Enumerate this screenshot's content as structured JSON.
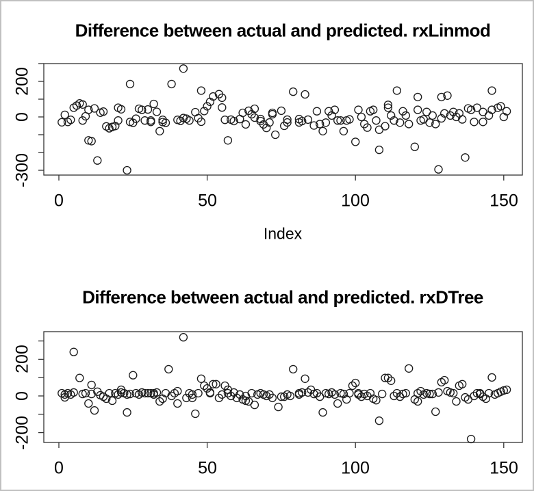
{
  "style": {
    "background": "#ffffff",
    "frame_border_color": "#c0c0c0",
    "axis_color": "#333333",
    "point_color": "#1c1c1c",
    "text_color": "#000000"
  },
  "chart_data": [
    {
      "type": "scatter",
      "title": "Difference between actual and predicted. rxLinmod",
      "xlabel": "Index",
      "ylabel": "",
      "marker": "open-circle",
      "grid": false,
      "legend": "none",
      "xlim": [
        -5,
        156
      ],
      "ylim": [
        -327,
        300
      ],
      "x_ticks": [
        0,
        50,
        100,
        150
      ],
      "x_tick_labels": [
        "0",
        "50",
        "100",
        "150"
      ],
      "y_ticks": [
        300,
        200,
        100,
        0,
        -100,
        -200,
        -300
      ],
      "y_ticks_labeled": [
        200,
        0,
        -300
      ],
      "y_tick_labels_shown": [
        "200",
        "0",
        "-300"
      ],
      "points": [
        [
          1,
          -30
        ],
        [
          2,
          12
        ],
        [
          3,
          -28
        ],
        [
          4,
          -16
        ],
        [
          5,
          52
        ],
        [
          6,
          64
        ],
        [
          7,
          76
        ],
        [
          8,
          70
        ],
        [
          8,
          -20
        ],
        [
          9,
          4
        ],
        [
          10,
          40
        ],
        [
          10,
          -132
        ],
        [
          11,
          -136
        ],
        [
          12,
          48
        ],
        [
          13,
          -245
        ],
        [
          14,
          24
        ],
        [
          15,
          30
        ],
        [
          16,
          -53
        ],
        [
          17,
          -64
        ],
        [
          18,
          -56
        ],
        [
          19,
          -51
        ],
        [
          20,
          -20
        ],
        [
          20,
          52
        ],
        [
          21,
          43
        ],
        [
          23,
          -300
        ],
        [
          24,
          -28
        ],
        [
          24,
          185
        ],
        [
          25,
          -33
        ],
        [
          26,
          -10
        ],
        [
          27,
          46
        ],
        [
          28,
          40
        ],
        [
          29,
          -20
        ],
        [
          30,
          42
        ],
        [
          31,
          -28
        ],
        [
          31,
          -20
        ],
        [
          32,
          73
        ],
        [
          33,
          29
        ],
        [
          34,
          -80
        ],
        [
          35,
          -16
        ],
        [
          35,
          -29
        ],
        [
          36,
          -33
        ],
        [
          38,
          185
        ],
        [
          40,
          -16
        ],
        [
          41,
          -22
        ],
        [
          42,
          272
        ],
        [
          42,
          -6
        ],
        [
          43,
          -10
        ],
        [
          44,
          -20
        ],
        [
          46,
          27
        ],
        [
          47,
          -7
        ],
        [
          48,
          -27
        ],
        [
          48,
          148
        ],
        [
          49,
          33
        ],
        [
          50,
          60
        ],
        [
          51,
          85
        ],
        [
          52,
          115
        ],
        [
          54,
          128
        ],
        [
          55,
          108
        ],
        [
          55,
          53
        ],
        [
          56,
          -16
        ],
        [
          57,
          -132
        ],
        [
          58,
          -15
        ],
        [
          59,
          -23
        ],
        [
          61,
          -12
        ],
        [
          62,
          23
        ],
        [
          63,
          -42
        ],
        [
          64,
          35
        ],
        [
          65,
          15
        ],
        [
          66,
          46
        ],
        [
          66,
          -4
        ],
        [
          68,
          -12
        ],
        [
          68,
          -23
        ],
        [
          69,
          -42
        ],
        [
          70,
          -62
        ],
        [
          71,
          -31
        ],
        [
          72,
          15
        ],
        [
          72,
          23
        ],
        [
          73,
          -100
        ],
        [
          75,
          35
        ],
        [
          76,
          -50
        ],
        [
          77,
          -15
        ],
        [
          77,
          -31
        ],
        [
          79,
          142
        ],
        [
          81,
          -31
        ],
        [
          81,
          -12
        ],
        [
          82,
          -23
        ],
        [
          83,
          127
        ],
        [
          84,
          -15
        ],
        [
          86,
          -48
        ],
        [
          87,
          32
        ],
        [
          88,
          -40
        ],
        [
          89,
          -80
        ],
        [
          90,
          -32
        ],
        [
          91,
          32
        ],
        [
          92,
          8
        ],
        [
          93,
          40
        ],
        [
          94,
          -20
        ],
        [
          95,
          -20
        ],
        [
          96,
          -80
        ],
        [
          97,
          -20
        ],
        [
          98,
          -14
        ],
        [
          100,
          -140
        ],
        [
          101,
          40
        ],
        [
          102,
          0
        ],
        [
          103,
          -40
        ],
        [
          104,
          -60
        ],
        [
          105,
          32
        ],
        [
          106,
          40
        ],
        [
          107,
          -20
        ],
        [
          108,
          -185
        ],
        [
          108,
          -72
        ],
        [
          110,
          -52
        ],
        [
          111,
          68
        ],
        [
          111,
          52
        ],
        [
          112,
          8
        ],
        [
          113,
          -20
        ],
        [
          114,
          148
        ],
        [
          115,
          -32
        ],
        [
          116,
          32
        ],
        [
          117,
          8
        ],
        [
          118,
          -40
        ],
        [
          120,
          -168
        ],
        [
          121,
          40
        ],
        [
          121,
          112
        ],
        [
          122,
          -20
        ],
        [
          123,
          -14
        ],
        [
          124,
          28
        ],
        [
          125,
          -32
        ],
        [
          126,
          8
        ],
        [
          127,
          -40
        ],
        [
          128,
          -295
        ],
        [
          129,
          112
        ],
        [
          129,
          -8
        ],
        [
          130,
          20
        ],
        [
          131,
          120
        ],
        [
          132,
          8
        ],
        [
          133,
          28
        ],
        [
          134,
          0
        ],
        [
          135,
          20
        ],
        [
          136,
          -14
        ],
        [
          137,
          -228
        ],
        [
          138,
          48
        ],
        [
          139,
          40
        ],
        [
          140,
          -28
        ],
        [
          141,
          52
        ],
        [
          143,
          28
        ],
        [
          143,
          -28
        ],
        [
          145,
          8
        ],
        [
          146,
          148
        ],
        [
          146,
          40
        ],
        [
          148,
          52
        ],
        [
          149,
          60
        ],
        [
          150,
          0
        ],
        [
          151,
          32
        ]
      ]
    },
    {
      "type": "scatter",
      "title": "Difference between actual and predicted. rxDTree",
      "xlabel": "",
      "ylabel": "",
      "marker": "open-circle",
      "grid": false,
      "legend": "none",
      "xlim": [
        -5,
        156
      ],
      "ylim": [
        -255,
        352
      ],
      "x_ticks": [
        0,
        50,
        100,
        150
      ],
      "x_tick_labels": [
        "0",
        "50",
        "100",
        "150"
      ],
      "y_ticks": [
        300,
        200,
        100,
        0,
        -100,
        -200
      ],
      "y_ticks_labeled": [
        200,
        0,
        -200
      ],
      "y_tick_labels_shown": [
        "200",
        "0",
        "-200"
      ],
      "points": [
        [
          1,
          15
        ],
        [
          2,
          8
        ],
        [
          2,
          -8
        ],
        [
          3,
          15
        ],
        [
          4,
          8
        ],
        [
          5,
          240
        ],
        [
          5,
          19
        ],
        [
          7,
          98
        ],
        [
          8,
          11
        ],
        [
          9,
          15
        ],
        [
          10,
          -41
        ],
        [
          11,
          60
        ],
        [
          11,
          11
        ],
        [
          12,
          -79
        ],
        [
          13,
          23
        ],
        [
          14,
          4
        ],
        [
          15,
          -4
        ],
        [
          16,
          -15
        ],
        [
          17,
          15
        ],
        [
          18,
          -26
        ],
        [
          19,
          15
        ],
        [
          20,
          8
        ],
        [
          21,
          19
        ],
        [
          21,
          34
        ],
        [
          22,
          15
        ],
        [
          23,
          8
        ],
        [
          23,
          -90
        ],
        [
          24,
          11
        ],
        [
          25,
          113
        ],
        [
          26,
          15
        ],
        [
          27,
          8
        ],
        [
          28,
          19
        ],
        [
          29,
          15
        ],
        [
          30,
          15
        ],
        [
          31,
          15
        ],
        [
          32,
          8
        ],
        [
          32,
          15
        ],
        [
          33,
          19
        ],
        [
          34,
          -30
        ],
        [
          35,
          -15
        ],
        [
          36,
          15
        ],
        [
          37,
          146
        ],
        [
          38,
          0
        ],
        [
          39,
          15
        ],
        [
          40,
          -41
        ],
        [
          40,
          26
        ],
        [
          42,
          320
        ],
        [
          43,
          -11
        ],
        [
          44,
          15
        ],
        [
          45,
          8
        ],
        [
          45,
          -11
        ],
        [
          46,
          -97
        ],
        [
          47,
          15
        ],
        [
          48,
          94
        ],
        [
          49,
          56
        ],
        [
          50,
          41
        ],
        [
          51,
          15
        ],
        [
          51,
          19
        ],
        [
          52,
          64
        ],
        [
          53,
          64
        ],
        [
          54,
          -11
        ],
        [
          55,
          8
        ],
        [
          56,
          56
        ],
        [
          57,
          34
        ],
        [
          57,
          15
        ],
        [
          58,
          0
        ],
        [
          59,
          19
        ],
        [
          60,
          -11
        ],
        [
          61,
          8
        ],
        [
          62,
          -19
        ],
        [
          63,
          -26
        ],
        [
          63,
          0
        ],
        [
          64,
          -30
        ],
        [
          65,
          15
        ],
        [
          66,
          -49
        ],
        [
          67,
          8
        ],
        [
          68,
          15
        ],
        [
          69,
          8
        ],
        [
          70,
          0
        ],
        [
          71,
          8
        ],
        [
          72,
          -11
        ],
        [
          74,
          -60
        ],
        [
          75,
          -4
        ],
        [
          76,
          -4
        ],
        [
          77,
          8
        ],
        [
          78,
          0
        ],
        [
          79,
          146
        ],
        [
          81,
          15
        ],
        [
          81,
          8
        ],
        [
          82,
          19
        ],
        [
          83,
          94
        ],
        [
          84,
          19
        ],
        [
          85,
          34
        ],
        [
          86,
          11
        ],
        [
          87,
          15
        ],
        [
          88,
          -4
        ],
        [
          89,
          -90
        ],
        [
          90,
          15
        ],
        [
          91,
          11
        ],
        [
          92,
          19
        ],
        [
          93,
          8
        ],
        [
          94,
          -41
        ],
        [
          95,
          15
        ],
        [
          96,
          11
        ],
        [
          97,
          -19
        ],
        [
          98,
          15
        ],
        [
          99,
          56
        ],
        [
          100,
          71
        ],
        [
          101,
          8
        ],
        [
          101,
          15
        ],
        [
          102,
          -4
        ],
        [
          103,
          11
        ],
        [
          104,
          0
        ],
        [
          105,
          15
        ],
        [
          106,
          -15
        ],
        [
          107,
          -23
        ],
        [
          108,
          -135
        ],
        [
          109,
          11
        ],
        [
          110,
          98
        ],
        [
          111,
          98
        ],
        [
          112,
          83
        ],
        [
          113,
          0
        ],
        [
          114,
          15
        ],
        [
          115,
          -4
        ],
        [
          116,
          11
        ],
        [
          117,
          15
        ],
        [
          118,
          150
        ],
        [
          120,
          -19
        ],
        [
          121,
          -30
        ],
        [
          121,
          15
        ],
        [
          122,
          26
        ],
        [
          123,
          8
        ],
        [
          124,
          15
        ],
        [
          125,
          11
        ],
        [
          126,
          11
        ],
        [
          127,
          -86
        ],
        [
          128,
          19
        ],
        [
          129,
          75
        ],
        [
          130,
          86
        ],
        [
          131,
          26
        ],
        [
          132,
          19
        ],
        [
          133,
          15
        ],
        [
          134,
          -30
        ],
        [
          135,
          56
        ],
        [
          136,
          64
        ],
        [
          137,
          -8
        ],
        [
          138,
          -19
        ],
        [
          139,
          -235
        ],
        [
          140,
          0
        ],
        [
          141,
          15
        ],
        [
          142,
          11
        ],
        [
          142,
          15
        ],
        [
          143,
          -4
        ],
        [
          144,
          -15
        ],
        [
          145,
          15
        ],
        [
          146,
          101
        ],
        [
          147,
          8
        ],
        [
          148,
          15
        ],
        [
          149,
          23
        ],
        [
          150,
          30
        ],
        [
          151,
          34
        ]
      ]
    }
  ]
}
